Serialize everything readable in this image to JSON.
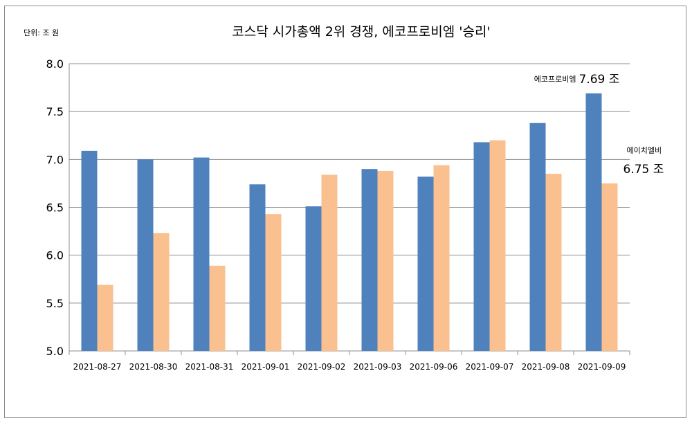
{
  "chart_data": {
    "type": "bar",
    "title": "코스닥 시가총액 2위 경쟁, 에코프로비엠 '승리'",
    "unit_label": "단위: 조 원",
    "categories": [
      "2021-08-27",
      "2021-08-30",
      "2021-08-31",
      "2021-09-01",
      "2021-09-02",
      "2021-09-03",
      "2021-09-06",
      "2021-09-07",
      "2021-09-08",
      "2021-09-09"
    ],
    "series": [
      {
        "name": "에코프로비엠",
        "color": "#4f81bd",
        "values": [
          7.09,
          7.0,
          7.02,
          6.74,
          6.51,
          6.9,
          6.82,
          7.18,
          7.38,
          7.69
        ]
      },
      {
        "name": "에이치엘비",
        "color": "#fac090",
        "values": [
          5.69,
          6.23,
          5.89,
          6.43,
          6.84,
          6.88,
          6.94,
          7.2,
          6.85,
          6.75
        ]
      }
    ],
    "ylim": [
      5.0,
      8.0
    ],
    "yticks": [
      "5.0",
      "5.5",
      "6.0",
      "6.5",
      "7.0",
      "7.5",
      "8.0"
    ],
    "grid": true,
    "annotations": [
      {
        "series_index": 0,
        "name": "에코프로비엠",
        "value": "7.69 조"
      },
      {
        "series_index": 1,
        "name": "에이치엘비",
        "value": "6.75 조"
      }
    ]
  }
}
